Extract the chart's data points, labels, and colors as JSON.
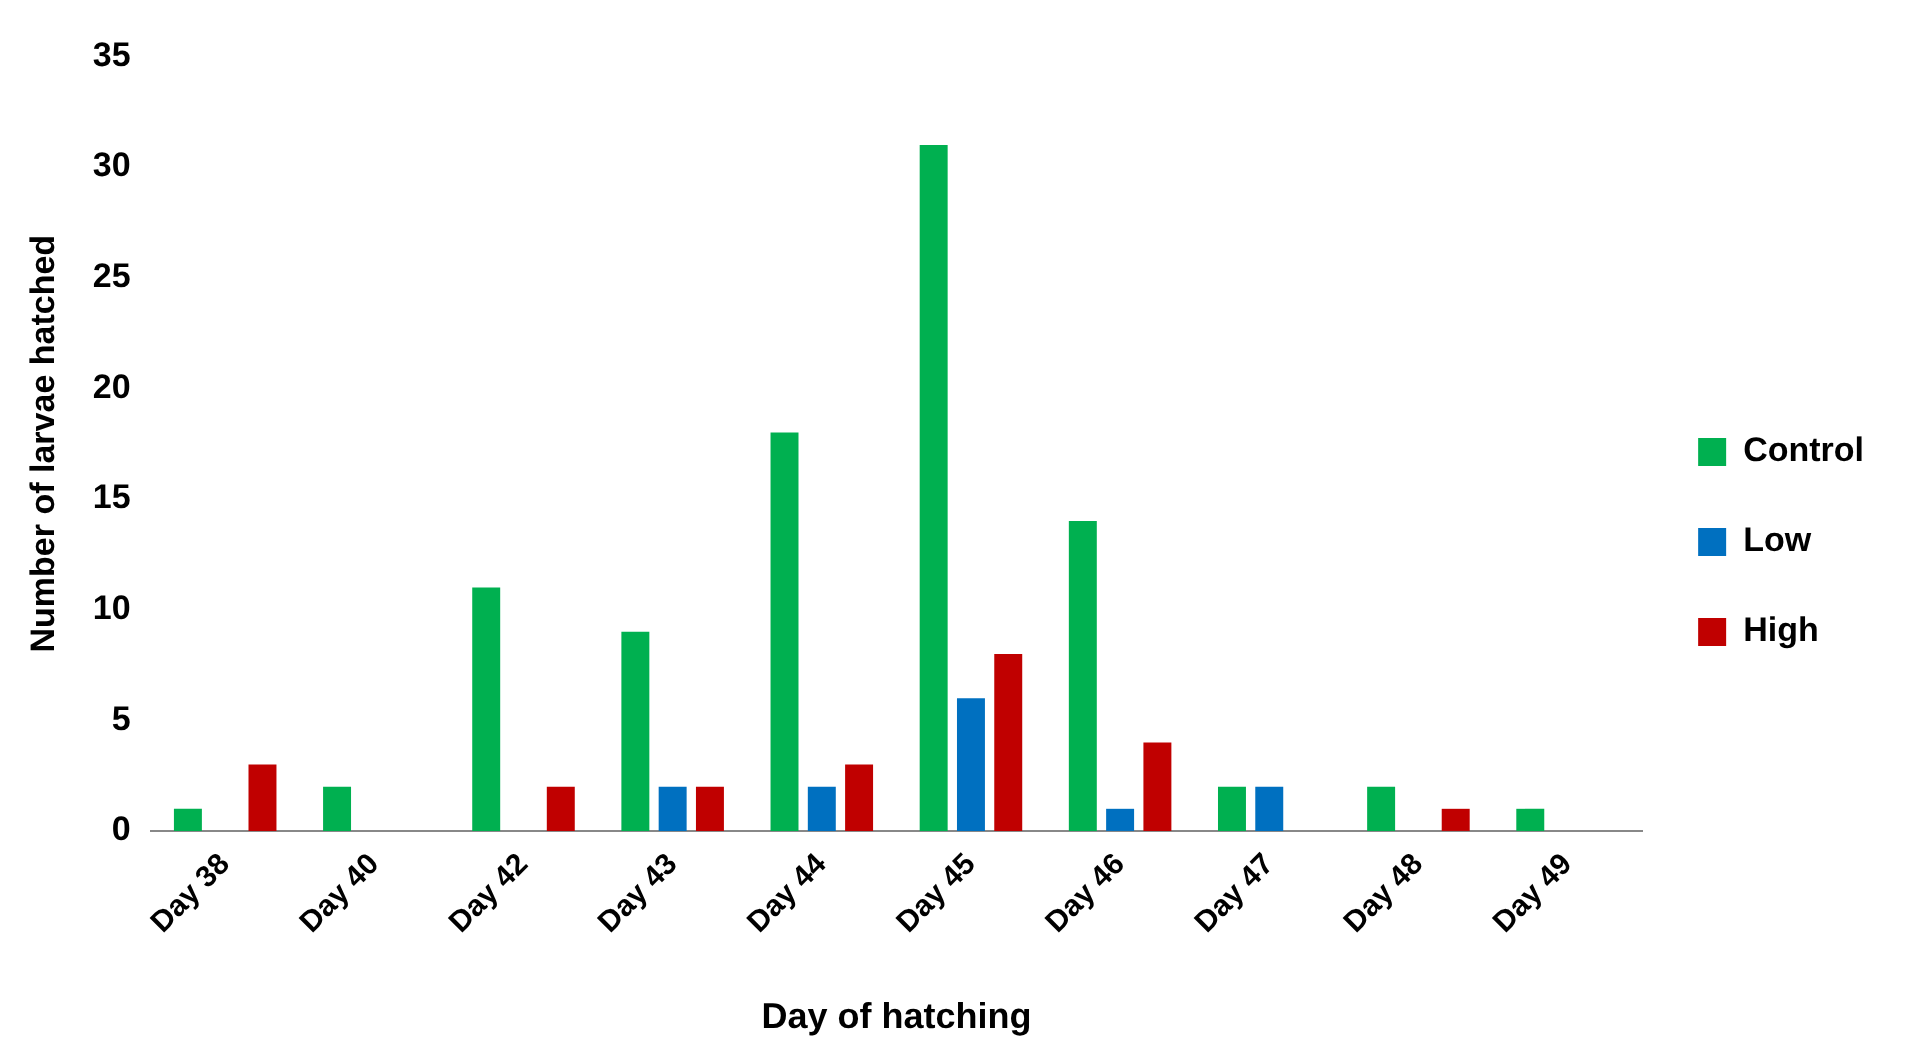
{
  "chart_data": {
    "type": "bar",
    "xlabel": "Day of hatching",
    "ylabel": "Number of larvae hatched",
    "categories": [
      "Day 38",
      "Day 40",
      "Day 42",
      "Day 43",
      "Day 44",
      "Day 45",
      "Day 46",
      "Day 47",
      "Day 48",
      "Day 49"
    ],
    "series": [
      {
        "name": "Control",
        "color": "#00b050",
        "values": [
          1,
          2,
          11,
          9,
          18,
          31,
          14,
          2,
          2,
          1
        ]
      },
      {
        "name": "Low",
        "color": "#0070c0",
        "values": [
          0,
          0,
          0,
          2,
          2,
          6,
          1,
          2,
          0,
          0
        ]
      },
      {
        "name": "High",
        "color": "#c00000",
        "values": [
          3,
          0,
          2,
          2,
          3,
          8,
          4,
          0,
          1,
          0
        ]
      }
    ],
    "ylim": [
      0,
      35
    ],
    "yticks": [
      0,
      5,
      10,
      15,
      20,
      25,
      30,
      35
    ],
    "grid": false,
    "legend": "right"
  }
}
